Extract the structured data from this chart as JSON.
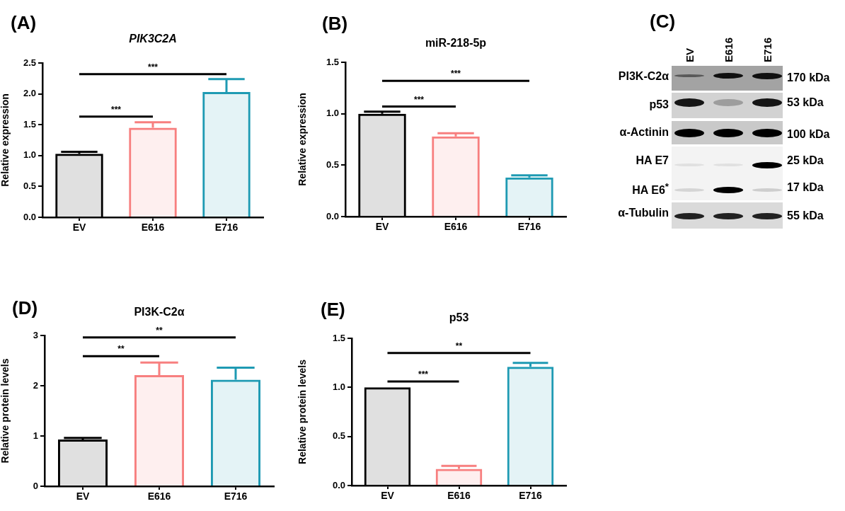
{
  "chart_data": [
    {
      "type": "bar",
      "title": "PIK3C2A",
      "ylabel": "Relative expression",
      "categories": [
        "EV",
        "E616",
        "E716"
      ],
      "values": [
        1.03,
        1.45,
        2.03
      ],
      "errors": [
        [
          1.03,
          1.06
        ],
        [
          1.45,
          1.54
        ],
        [
          2.03,
          2.24
        ]
      ],
      "colors": [
        "#000000",
        "#f77f7f",
        "#1e9ab3"
      ],
      "ylim": [
        0,
        2.5
      ],
      "yticks": [
        {
          "value": 0,
          "label": "0.0"
        },
        {
          "value": 0.5,
          "label": "0.5"
        },
        {
          "value": 1,
          "label": "1.0"
        },
        {
          "value": 1.5,
          "label": "1.5"
        },
        {
          "value": 2,
          "label": "2.0"
        },
        {
          "value": 2.5,
          "label": "2.5"
        }
      ],
      "annotations": [
        "(A)",
        "***",
        "***"
      ]
    },
    {
      "type": "bar",
      "title": "miR-218-5p",
      "ylabel": "Relative expression",
      "categories": [
        "EV",
        "E616",
        "E716"
      ],
      "values": [
        1.0,
        0.78,
        0.38
      ],
      "errors": [
        [
          1.0,
          1.02
        ],
        [
          0.78,
          0.81
        ],
        [
          0.38,
          0.4
        ]
      ],
      "colors": [
        "#000000",
        "#f77f7f",
        "#1e9ab3"
      ],
      "ylim": [
        0,
        1.5
      ],
      "yticks": [
        {
          "value": 0,
          "label": "0.0"
        },
        {
          "value": 0.5,
          "label": "0.5"
        },
        {
          "value": 1,
          "label": "1.0"
        },
        {
          "value": 1.5,
          "label": "1.5"
        }
      ],
      "annotations": [
        "(B)",
        "***",
        "***"
      ]
    },
    {
      "type": "other",
      "categories": [
        "EV",
        "E616",
        "E716"
      ],
      "y_categories": [
        "PI3K-C2α",
        "p53",
        "α-Actinin",
        "HA E7",
        "HA E6$^{*}$",
        "α-Tubulin"
      ],
      "y2_categories": [
        "170 kDa",
        "53 kDa",
        "100 kDa",
        "25 kDa",
        "17 kDa",
        "55 kDa"
      ],
      "annotations": [
        "(C)"
      ]
    },
    {
      "type": "bar",
      "title": "PI3K-C2α",
      "ylabel": "Relative protein levels",
      "categories": [
        "EV",
        "E616",
        "E716"
      ],
      "values": [
        0.93,
        2.21,
        2.12
      ],
      "errors": [
        [
          0.93,
          0.96
        ],
        [
          2.21,
          2.46
        ],
        [
          2.12,
          2.36
        ]
      ],
      "colors": [
        "#000000",
        "#f77f7f",
        "#1e9ab3"
      ],
      "ylim": [
        0,
        3
      ],
      "yticks": [
        0,
        1,
        2,
        3
      ],
      "annotations": [
        "(D)",
        "**",
        "**"
      ]
    },
    {
      "type": "bar",
      "title": "p53",
      "ylabel": "Relative protein levels",
      "categories": [
        "EV",
        "E616",
        "E716"
      ],
      "values": [
        1.0,
        0.17,
        1.21
      ],
      "errors": [
        null,
        [
          0.17,
          0.2
        ],
        [
          1.21,
          1.25
        ]
      ],
      "colors": [
        "#000000",
        "#f77f7f",
        "#1e9ab3"
      ],
      "ylim": [
        0,
        1.5
      ],
      "yticks": [
        {
          "value": 0,
          "label": "0.0"
        },
        {
          "value": 0.5,
          "label": "0.5"
        },
        {
          "value": 1,
          "label": "1.0"
        },
        {
          "value": 1.5,
          "label": "1.5"
        }
      ],
      "annotations": [
        "(E)",
        "***",
        "**"
      ]
    }
  ]
}
